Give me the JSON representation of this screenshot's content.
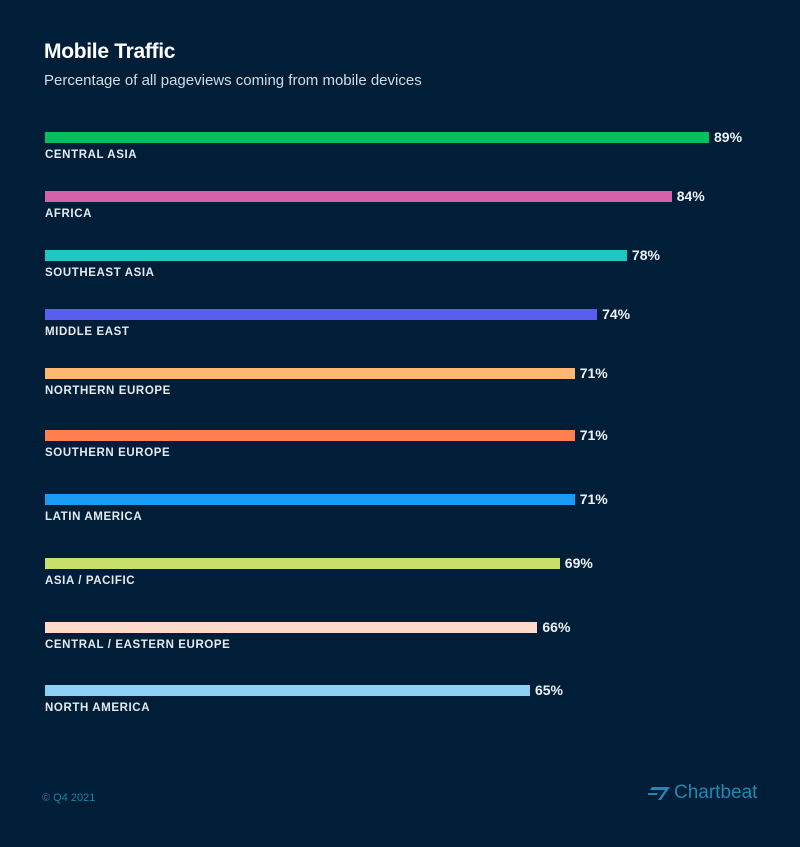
{
  "chart_data": {
    "type": "bar",
    "orientation": "horizontal",
    "title": "Mobile Traffic",
    "subtitle": "Percentage of all pageviews coming from mobile devices",
    "xlabel": "",
    "ylabel": "",
    "xlim": [
      0,
      89
    ],
    "grid": false,
    "categories": [
      "CENTRAL ASIA",
      "AFRICA",
      "SOUTHEAST ASIA",
      "MIDDLE EAST",
      "NORTHERN EUROPE",
      "SOUTHERN EUROPE",
      "LATIN AMERICA",
      "ASIA / PACIFIC",
      "CENTRAL / EASTERN EUROPE",
      "NORTH AMERICA"
    ],
    "values": [
      89,
      84,
      78,
      74,
      71,
      71,
      71,
      69,
      66,
      65
    ],
    "value_labels": [
      "89%",
      "84%",
      "78%",
      "74%",
      "71%",
      "71%",
      "71%",
      "69%",
      "66%",
      "65%"
    ],
    "colors": [
      "#00c060",
      "#d462a8",
      "#1ec8c0",
      "#5b5cf0",
      "#ffb870",
      "#ff7f50",
      "#1a9cf5",
      "#c8e06a",
      "#ffd9c9",
      "#8ecff5"
    ]
  },
  "footer": {
    "copyright": "© Q4 2021",
    "brand": "Chartbeat"
  }
}
